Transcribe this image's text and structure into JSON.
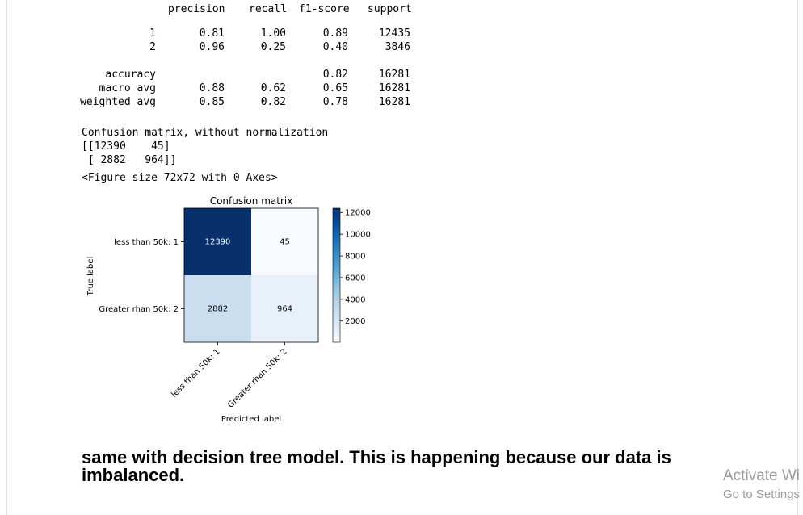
{
  "report": {
    "header": [
      "precision",
      "recall",
      "f1-score",
      "support"
    ],
    "rows": [
      {
        "label": "1",
        "precision": "0.81",
        "recall": "1.00",
        "f1": "0.89",
        "support": "12435"
      },
      {
        "label": "2",
        "precision": "0.96",
        "recall": "0.25",
        "f1": "0.40",
        "support": "3846"
      },
      {
        "label": "accuracy",
        "precision": "",
        "recall": "",
        "f1": "0.82",
        "support": "16281"
      },
      {
        "label": "macro avg",
        "precision": "0.88",
        "recall": "0.62",
        "f1": "0.65",
        "support": "16281"
      },
      {
        "label": "weighted avg",
        "precision": "0.85",
        "recall": "0.82",
        "f1": "0.78",
        "support": "16281"
      }
    ]
  },
  "output": {
    "cm_title": "Confusion matrix, without normalization",
    "cm_line1": "[[12390    45]",
    "cm_line2": " [ 2882   964]]",
    "figure_repr": "<Figure size 72x72 with 0 Axes>"
  },
  "chart_data": {
    "type": "heatmap",
    "title": "Confusion matrix",
    "xlabel": "Predicted label",
    "ylabel": "True label",
    "row_labels": [
      "less than 50k: 1",
      "Greater rhan 50k: 2"
    ],
    "col_labels": [
      "less than 50k: 1",
      "Greater rhan 50k: 2"
    ],
    "values": [
      [
        12390,
        45
      ],
      [
        2882,
        964
      ]
    ],
    "colormap": "Blues",
    "colorbar_ticks": [
      12000,
      10000,
      8000,
      6000,
      4000,
      2000
    ],
    "vmin": 45,
    "vmax": 12390
  },
  "markdown": {
    "text": "same with decision tree model. This is happening because our data is imbalanced."
  },
  "watermark": {
    "line1": "Activate Wi",
    "line2": "Go to Settings"
  }
}
